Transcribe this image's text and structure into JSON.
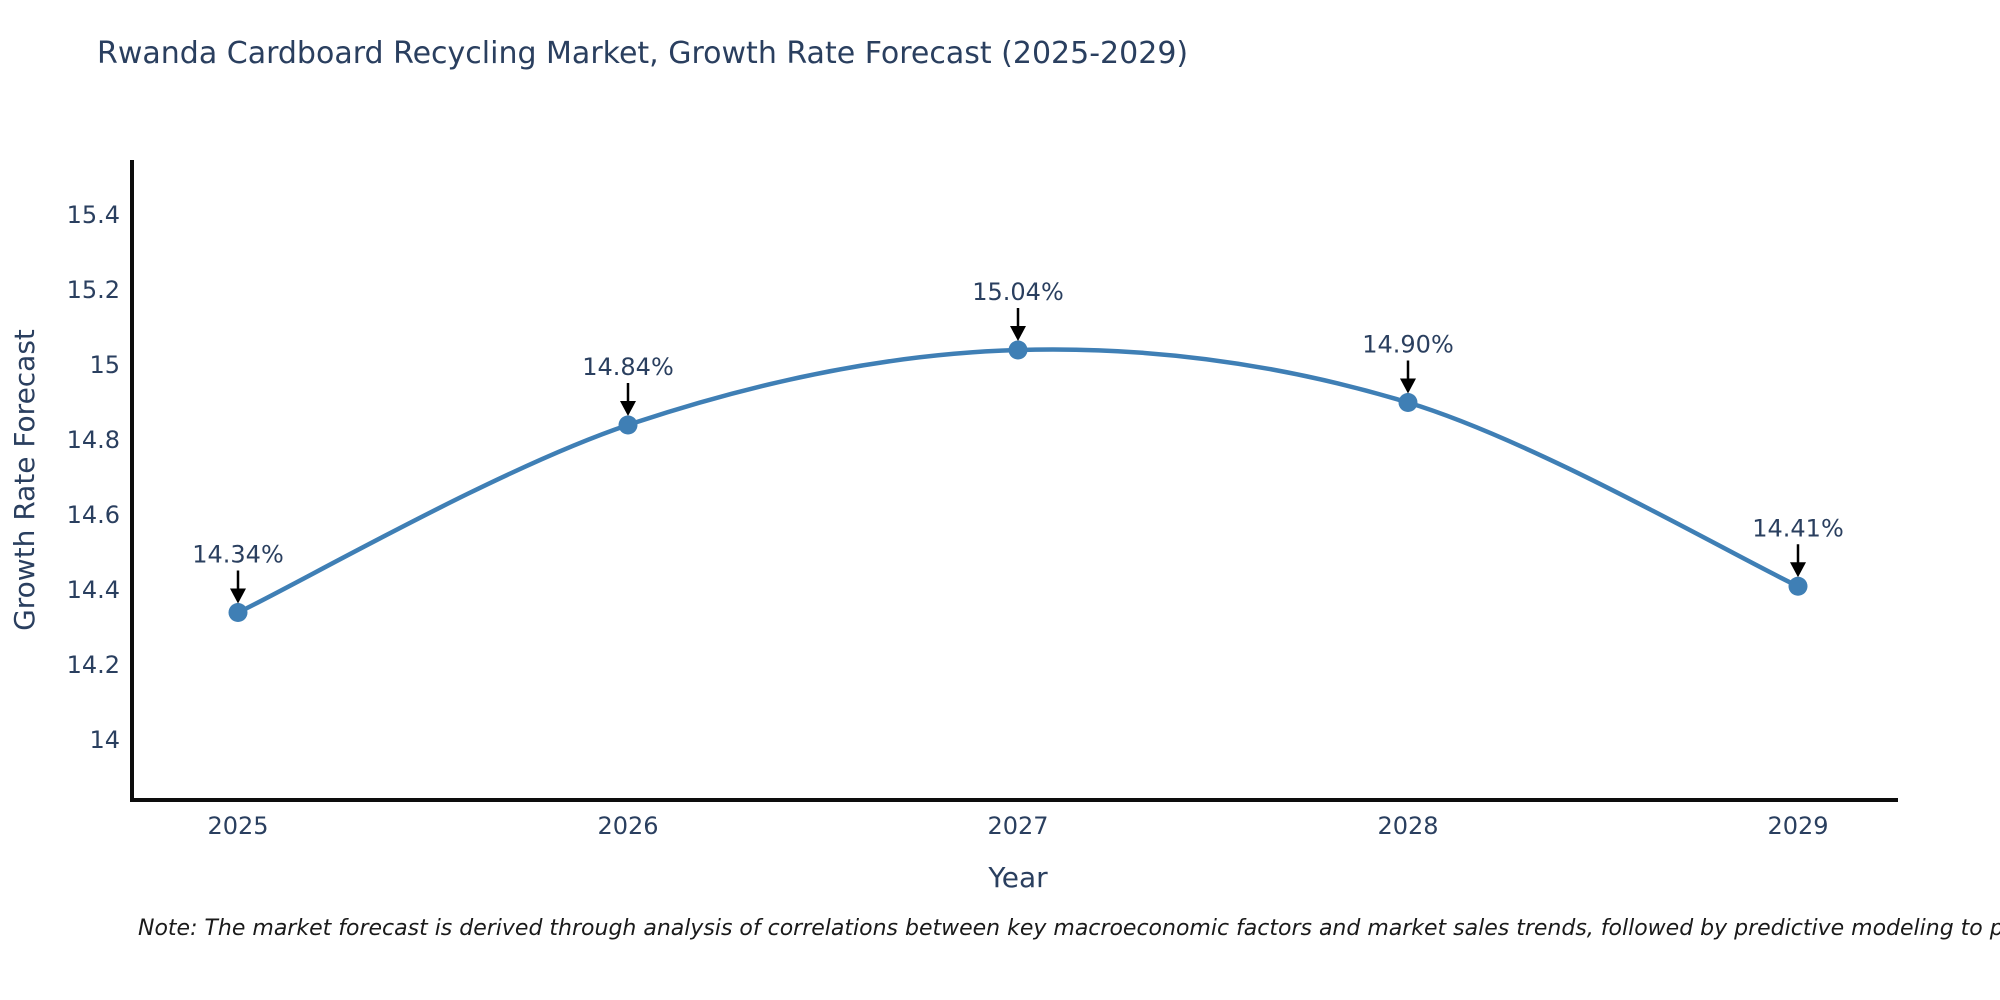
{
  "title": "Rwanda Cardboard Recycling Market, Growth Rate Forecast (2025-2029)",
  "note": "Note: The market forecast is derived through analysis of correlations between key macroeconomic factors and market sales trends, followed by predictive modeling to project future sal",
  "colors": {
    "title_text": "#2a3f5f",
    "tick_text": "#2a3f5f",
    "axis_line": "#0d0d0d",
    "line": "#3f7fb5",
    "marker": "#3f7fb5",
    "annotation_text": "#2a3f5f",
    "annotation_arrow": "#000000",
    "note_text": "#1a1a1a",
    "background": "#ffffff"
  },
  "chart_data": {
    "type": "line",
    "title": "Rwanda Cardboard Recycling Market, Growth Rate Forecast (2025-2029)",
    "x": [
      2025,
      2026,
      2027,
      2028,
      2029
    ],
    "series": [
      {
        "name": "Growth Rate Forecast",
        "values": [
          14.34,
          14.84,
          15.04,
          14.9,
          14.41
        ],
        "point_labels": [
          "14.34%",
          "14.84%",
          "15.04%",
          "14.90%",
          "14.41%"
        ]
      }
    ],
    "xlabel": "Year",
    "ylabel": "Growth Rate Forecast",
    "xtick_labels": [
      "2025",
      "2026",
      "2027",
      "2028",
      "2029"
    ],
    "ytick_values": [
      14,
      14.2,
      14.4,
      14.6,
      14.8,
      15,
      15.2,
      15.4
    ],
    "ytick_labels": [
      "14",
      "14.2",
      "14.4",
      "14.6",
      "14.8",
      "15",
      "15.2",
      "15.4"
    ],
    "ylim": [
      13.835,
      15.55
    ],
    "grid": false,
    "legend": "none",
    "line_style": "smooth-spline",
    "markers": true,
    "annotations": "value-labels-with-down-arrows"
  }
}
